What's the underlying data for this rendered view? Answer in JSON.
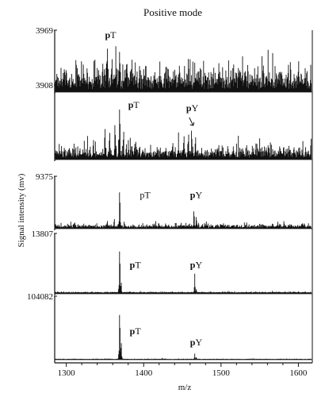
{
  "chart_data": {
    "type": "line",
    "title": "Positive mode",
    "xlabel": "m/z",
    "ylabel": "Signal intensity (mv)",
    "xlim": [
      1285,
      1618
    ],
    "x_ticks": [
      "1300",
      "1400",
      "1500",
      "1600"
    ],
    "x_tick_values": [
      1300,
      1400,
      1500,
      1600
    ],
    "grid": false,
    "legend": "none",
    "panels": [
      {
        "ymax_label": "3969",
        "ymax": 3969,
        "noise": 0.5,
        "baseline": 0.05,
        "peaks": [
          {
            "x": 1337,
            "y": 0.55
          },
          {
            "x": 1347,
            "y": 0.62
          },
          {
            "x": 1353,
            "y": 0.95
          },
          {
            "x": 1359,
            "y": 0.72
          },
          {
            "x": 1364,
            "y": 0.78
          },
          {
            "x": 1369,
            "y": 0.88
          },
          {
            "x": 1378,
            "y": 0.6
          },
          {
            "x": 1385,
            "y": 0.55
          },
          {
            "x": 1421,
            "y": 0.52
          },
          {
            "x": 1432,
            "y": 0.5
          },
          {
            "x": 1460,
            "y": 0.56
          },
          {
            "x": 1466,
            "y": 0.5
          },
          {
            "x": 1555,
            "y": 0.58
          }
        ],
        "labels": [
          {
            "text_bold": "p",
            "text": "T",
            "x": 1350,
            "y": 0.92
          }
        ]
      },
      {
        "ymax_label": "3908",
        "ymax": 3908,
        "noise": 0.22,
        "baseline": 0.03,
        "peaks": [
          {
            "x": 1335,
            "y": 0.35
          },
          {
            "x": 1350,
            "y": 0.55
          },
          {
            "x": 1356,
            "y": 0.48
          },
          {
            "x": 1363,
            "y": 0.62
          },
          {
            "x": 1369,
            "y": 0.9
          },
          {
            "x": 1374,
            "y": 0.5
          },
          {
            "x": 1390,
            "y": 0.32
          },
          {
            "x": 1445,
            "y": 0.38
          },
          {
            "x": 1452,
            "y": 0.42
          },
          {
            "x": 1458,
            "y": 0.45
          },
          {
            "x": 1462,
            "y": 0.52
          },
          {
            "x": 1467,
            "y": 0.4
          }
        ],
        "labels": [
          {
            "text_bold": "p",
            "text": "T",
            "x": 1380,
            "y": 0.72
          },
          {
            "text_bold": "p",
            "text": "Y",
            "x": 1455,
            "y": 0.68
          }
        ]
      },
      {
        "ymax_label": "9375",
        "ymax": 9375,
        "noise": 0.1,
        "baseline": 0.02,
        "peaks": [
          {
            "x": 1353,
            "y": 0.2
          },
          {
            "x": 1362,
            "y": 0.25
          },
          {
            "x": 1369,
            "y": 0.95
          },
          {
            "x": 1375,
            "y": 0.18
          },
          {
            "x": 1465,
            "y": 0.45
          },
          {
            "x": 1468,
            "y": 0.3
          },
          {
            "x": 1471,
            "y": 0.15
          }
        ],
        "labels": [
          {
            "text_bold": "",
            "text": "pT",
            "x": 1395,
            "y": 0.62
          },
          {
            "text_bold": "p",
            "text": "Y",
            "x": 1460,
            "y": 0.62
          }
        ]
      },
      {
        "ymax_label": "13807",
        "ymax": 13807,
        "noise": 0.02,
        "baseline": 0.02,
        "peaks": [
          {
            "x": 1369,
            "y": 0.95
          },
          {
            "x": 1371,
            "y": 0.25
          },
          {
            "x": 1466,
            "y": 0.35
          },
          {
            "x": 1468,
            "y": 0.1
          }
        ],
        "labels": [
          {
            "text_bold": "p",
            "text": "T",
            "x": 1382,
            "y": 0.45
          },
          {
            "text_bold": "p",
            "text": "Y",
            "x": 1460,
            "y": 0.45
          }
        ]
      },
      {
        "ymax_label": "104082",
        "ymax": 104082,
        "noise": 0.008,
        "baseline": 0.01,
        "peaks": [
          {
            "x": 1369,
            "y": 0.95
          },
          {
            "x": 1371,
            "y": 0.35
          },
          {
            "x": 1424,
            "y": 0.03
          },
          {
            "x": 1466,
            "y": 0.1
          },
          {
            "x": 1468,
            "y": 0.05
          }
        ],
        "labels": [
          {
            "text_bold": "p",
            "text": "T",
            "x": 1382,
            "y": 0.42
          },
          {
            "text_bold": "p",
            "text": "Y",
            "x": 1460,
            "y": 0.24
          }
        ]
      }
    ]
  }
}
